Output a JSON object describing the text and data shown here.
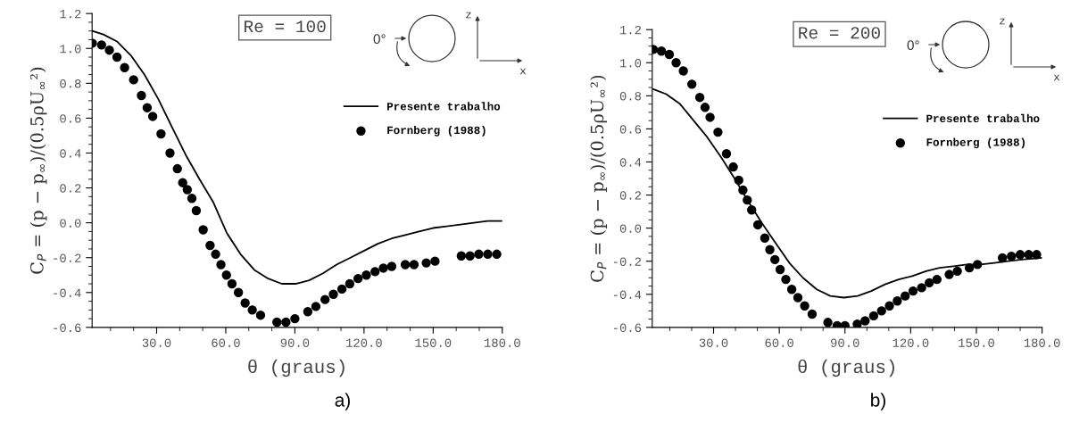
{
  "chart_data": [
    {
      "type": "line",
      "xlabel": "θ (graus)",
      "ylabel": "C$_{P}$ = (p − p$_{∞}$)/(0.5ρU$_{∞}$²)",
      "xlim": [
        2,
        180
      ],
      "xticks": [
        {
          "value": 30,
          "label": "30.0"
        },
        {
          "value": 60,
          "label": "60.0"
        },
        {
          "value": 90,
          "label": "90.0"
        },
        {
          "value": 120,
          "label": "120.0"
        },
        {
          "value": 150,
          "label": "150.0"
        },
        {
          "value": 180,
          "label": "180.0"
        }
      ],
      "ylim": [
        -0.6,
        1.2
      ],
      "yticks": [
        {
          "value": -0.6,
          "label": "-0.6"
        },
        {
          "value": -0.4,
          "label": "-0.4"
        },
        {
          "value": -0.2,
          "label": "-0.2"
        },
        {
          "value": 0,
          "label": "0.0"
        },
        {
          "value": 0.2,
          "label": "0.2"
        },
        {
          "value": 0.4,
          "label": "0.4"
        },
        {
          "value": 0.6,
          "label": "0.6"
        },
        {
          "value": 0.8,
          "label": "0.8"
        },
        {
          "value": 1,
          "label": "1.0"
        },
        {
          "value": 1.2,
          "label": "1.2"
        }
      ],
      "grid": false,
      "legend": "right",
      "annotations": [
        "Re = 100",
        "0°",
        "z",
        "x",
        "a)"
      ],
      "series": [
        {
          "name": "Presente trabalho",
          "color": "#000000",
          "marker": "none",
          "line_style": "solid",
          "x": [
            2.1,
            6.9,
            12.8,
            18.8,
            24.7,
            30.7,
            36.6,
            42.6,
            48.6,
            54.5,
            60.5,
            66.4,
            72.4,
            78.4,
            84.3,
            90.3,
            96.2,
            102.2,
            108.1,
            114.1,
            120.1,
            126.0,
            132.0,
            137.9,
            143.9,
            149.9,
            155.8,
            161.8,
            167.7,
            173.7,
            179.7
          ],
          "values": [
            1.1,
            1.08,
            1.04,
            0.96,
            0.85,
            0.71,
            0.55,
            0.39,
            0.25,
            0.12,
            -0.06,
            -0.18,
            -0.27,
            -0.32,
            -0.35,
            -0.35,
            -0.33,
            -0.29,
            -0.24,
            -0.2,
            -0.16,
            -0.12,
            -0.09,
            -0.07,
            -0.05,
            -0.03,
            -0.02,
            -0.01,
            0.0,
            0.01,
            0.01
          ]
        },
        {
          "name": "Fornberg (1988)",
          "type": "scatter",
          "color": "#000000",
          "marker": "circle",
          "x": [
            2.1,
            6.1,
            9.5,
            12.8,
            16.1,
            20.0,
            23.4,
            25.9,
            28.3,
            31.9,
            35.8,
            39.0,
            41.3,
            43.3,
            45.3,
            47.2,
            50.2,
            53.2,
            55.6,
            57.9,
            60.3,
            62.7,
            65.5,
            68.4,
            71.5,
            75.1,
            82.2,
            86.1,
            90.0,
            95.6,
            99.1,
            103.1,
            106.7,
            110.4,
            113.8,
            117.4,
            121.0,
            124.8,
            128.4,
            132.0,
            137.9,
            141.7,
            147.0,
            150.8,
            162.2,
            166.0,
            169.8,
            173.7,
            177.6
          ],
          "values": [
            1.03,
            1.02,
            0.99,
            0.95,
            0.89,
            0.82,
            0.73,
            0.66,
            0.61,
            0.51,
            0.4,
            0.31,
            0.23,
            0.19,
            0.14,
            0.07,
            -0.04,
            -0.13,
            -0.18,
            -0.24,
            -0.3,
            -0.35,
            -0.4,
            -0.46,
            -0.5,
            -0.53,
            -0.57,
            -0.57,
            -0.55,
            -0.51,
            -0.48,
            -0.44,
            -0.41,
            -0.38,
            -0.35,
            -0.32,
            -0.3,
            -0.28,
            -0.26,
            -0.25,
            -0.24,
            -0.24,
            -0.23,
            -0.22,
            -0.19,
            -0.19,
            -0.18,
            -0.18,
            -0.18
          ]
        }
      ]
    },
    {
      "type": "line",
      "xlabel": "θ (graus)",
      "ylabel": "C$_{P}$ = (p − p$_{∞}$)/(0.5ρU$_{∞}$²)",
      "xlim": [
        2,
        180
      ],
      "xticks": [
        {
          "value": 30,
          "label": "30.0"
        },
        {
          "value": 60,
          "label": "60.0"
        },
        {
          "value": 90,
          "label": "90.0"
        },
        {
          "value": 120,
          "label": "120.0"
        },
        {
          "value": 150,
          "label": "150.0"
        },
        {
          "value": 180,
          "label": "180.0"
        }
      ],
      "ylim": [
        -0.6,
        1.2
      ],
      "yticks": [
        {
          "value": -0.6,
          "label": "-0.6"
        },
        {
          "value": -0.4,
          "label": "-0.4"
        },
        {
          "value": -0.2,
          "label": "-0.2"
        },
        {
          "value": 0,
          "label": "0.0"
        },
        {
          "value": 0.2,
          "label": "0.2"
        },
        {
          "value": 0.4,
          "label": "0.4"
        },
        {
          "value": 0.6,
          "label": "0.6"
        },
        {
          "value": 0.8,
          "label": "0.8"
        },
        {
          "value": 1,
          "label": "1.0"
        },
        {
          "value": 1.2,
          "label": "1.2"
        }
      ],
      "grid": false,
      "legend": "right",
      "annotations": [
        "Re = 200",
        "0°",
        "z",
        "x",
        "b)"
      ],
      "series": [
        {
          "name": "Presente trabalho",
          "color": "#000000",
          "marker": "none",
          "line_style": "solid",
          "x": [
            2.5,
            8.4,
            14.7,
            20.9,
            27.1,
            33.4,
            39.6,
            45.9,
            52.1,
            58.3,
            64.6,
            70.8,
            77.1,
            83.3,
            89.5,
            95.8,
            102.0,
            108.3,
            114.5,
            120.7,
            127.0,
            133.2,
            139.5,
            145.7,
            151.9,
            158.2,
            164.4,
            170.7,
            179.7
          ],
          "values": [
            0.84,
            0.81,
            0.75,
            0.65,
            0.55,
            0.43,
            0.3,
            0.16,
            0.03,
            -0.09,
            -0.21,
            -0.3,
            -0.37,
            -0.41,
            -0.42,
            -0.41,
            -0.38,
            -0.34,
            -0.31,
            -0.29,
            -0.26,
            -0.24,
            -0.23,
            -0.22,
            -0.22,
            -0.21,
            -0.2,
            -0.19,
            -0.18
          ]
        },
        {
          "name": "Fornberg (1988)",
          "type": "scatter",
          "color": "#000000",
          "marker": "circle",
          "x": [
            2.5,
            6.2,
            9.8,
            12.9,
            16.2,
            20.1,
            23.7,
            26.1,
            28.4,
            32.0,
            35.9,
            39.0,
            41.5,
            43.4,
            45.4,
            47.4,
            50.2,
            53.4,
            55.7,
            58.0,
            60.4,
            63.0,
            65.7,
            68.5,
            71.6,
            75.0,
            82.2,
            86.4,
            90.0,
            95.6,
            99.2,
            103.1,
            106.7,
            110.3,
            113.9,
            117.5,
            121.1,
            125.0,
            128.5,
            132.0,
            137.6,
            141.3,
            146.8,
            150.5,
            161.9,
            166.0,
            170.0,
            173.9,
            177.5
          ],
          "values": [
            1.08,
            1.07,
            1.05,
            1.0,
            0.95,
            0.87,
            0.79,
            0.73,
            0.67,
            0.58,
            0.45,
            0.37,
            0.29,
            0.23,
            0.17,
            0.11,
            0.02,
            -0.06,
            -0.13,
            -0.19,
            -0.25,
            -0.31,
            -0.37,
            -0.42,
            -0.47,
            -0.52,
            -0.57,
            -0.59,
            -0.59,
            -0.58,
            -0.56,
            -0.53,
            -0.5,
            -0.47,
            -0.44,
            -0.41,
            -0.38,
            -0.36,
            -0.33,
            -0.31,
            -0.28,
            -0.26,
            -0.24,
            -0.22,
            -0.18,
            -0.17,
            -0.16,
            -0.16,
            -0.16
          ]
        }
      ]
    }
  ]
}
